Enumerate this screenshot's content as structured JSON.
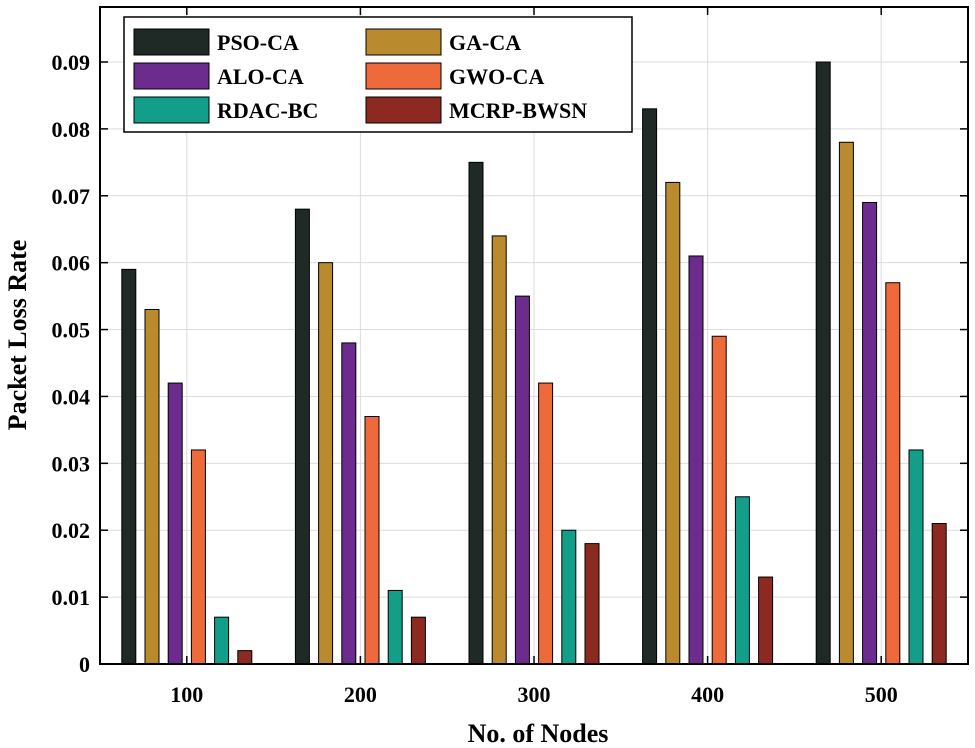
{
  "chart_data": {
    "type": "bar",
    "title": "",
    "xlabel": "No. of Nodes",
    "ylabel": "Packet Loss Rate",
    "categories": [
      "100",
      "200",
      "300",
      "400",
      "500"
    ],
    "ylim": [
      0,
      0.095
    ],
    "yticks": [
      0,
      0.01,
      0.02,
      0.03,
      0.04,
      0.05,
      0.06,
      0.07,
      0.08,
      0.09
    ],
    "ytick_labels": [
      "0",
      "0.01",
      "0.02",
      "0.03",
      "0.04",
      "0.05",
      "0.06",
      "0.07",
      "0.08",
      "0.09"
    ],
    "grid": true,
    "legend_position": "top-left",
    "series": [
      {
        "name": "PSO-CA",
        "color": "#1f2a26",
        "values": [
          0.059,
          0.068,
          0.075,
          0.083,
          0.09
        ]
      },
      {
        "name": "GA-CA",
        "color": "#b98a2e",
        "values": [
          0.053,
          0.06,
          0.064,
          0.072,
          0.078
        ]
      },
      {
        "name": "ALO-CA",
        "color": "#6b2c8e",
        "values": [
          0.042,
          0.048,
          0.055,
          0.061,
          0.069
        ]
      },
      {
        "name": "GWO-CA",
        "color": "#ee6a3a",
        "values": [
          0.032,
          0.037,
          0.042,
          0.049,
          0.057
        ]
      },
      {
        "name": "RDAC-BC",
        "color": "#139e8a",
        "values": [
          0.007,
          0.011,
          0.02,
          0.025,
          0.032
        ]
      },
      {
        "name": "MCRP-BWSN",
        "color": "#8c2a21",
        "values": [
          0.002,
          0.007,
          0.018,
          0.013,
          0.021
        ]
      }
    ]
  }
}
